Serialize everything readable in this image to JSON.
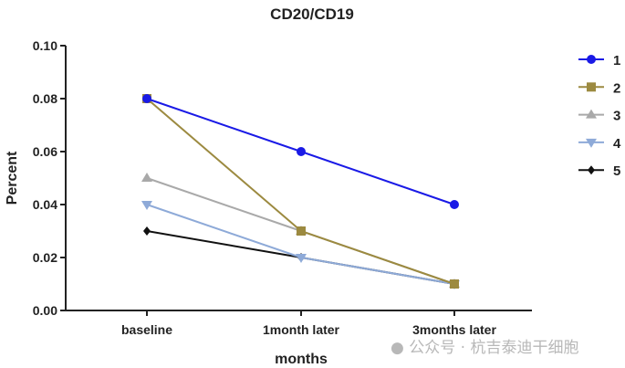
{
  "chart_data": {
    "type": "line",
    "title": "CD20/CD19",
    "xlabel": "months",
    "ylabel": "Percent",
    "categories": [
      "baseline",
      "1month later",
      "3months later"
    ],
    "ylim": [
      0,
      0.1
    ],
    "yticks": [
      "0.00",
      "0.02",
      "0.04",
      "0.06",
      "0.08",
      "0.10"
    ],
    "grid": false,
    "legend_placement": "right",
    "series": [
      {
        "name": "1",
        "values": [
          0.08,
          0.06,
          0.04
        ],
        "color": "#1a1ae6",
        "marker": "circle"
      },
      {
        "name": "2",
        "values": [
          0.08,
          0.03,
          0.01
        ],
        "color": "#9c8a40",
        "marker": "square"
      },
      {
        "name": "3",
        "values": [
          0.05,
          0.03,
          0.01
        ],
        "color": "#a9a9a9",
        "marker": "triangle-up"
      },
      {
        "name": "4",
        "values": [
          0.04,
          0.02,
          0.01
        ],
        "color": "#8eaad8",
        "marker": "triangle-down"
      },
      {
        "name": "5",
        "values": [
          0.03,
          0.02,
          0.01
        ],
        "color": "#111111",
        "marker": "diamond"
      }
    ]
  },
  "watermark": "公众号 · 杭吉泰迪干细胞"
}
